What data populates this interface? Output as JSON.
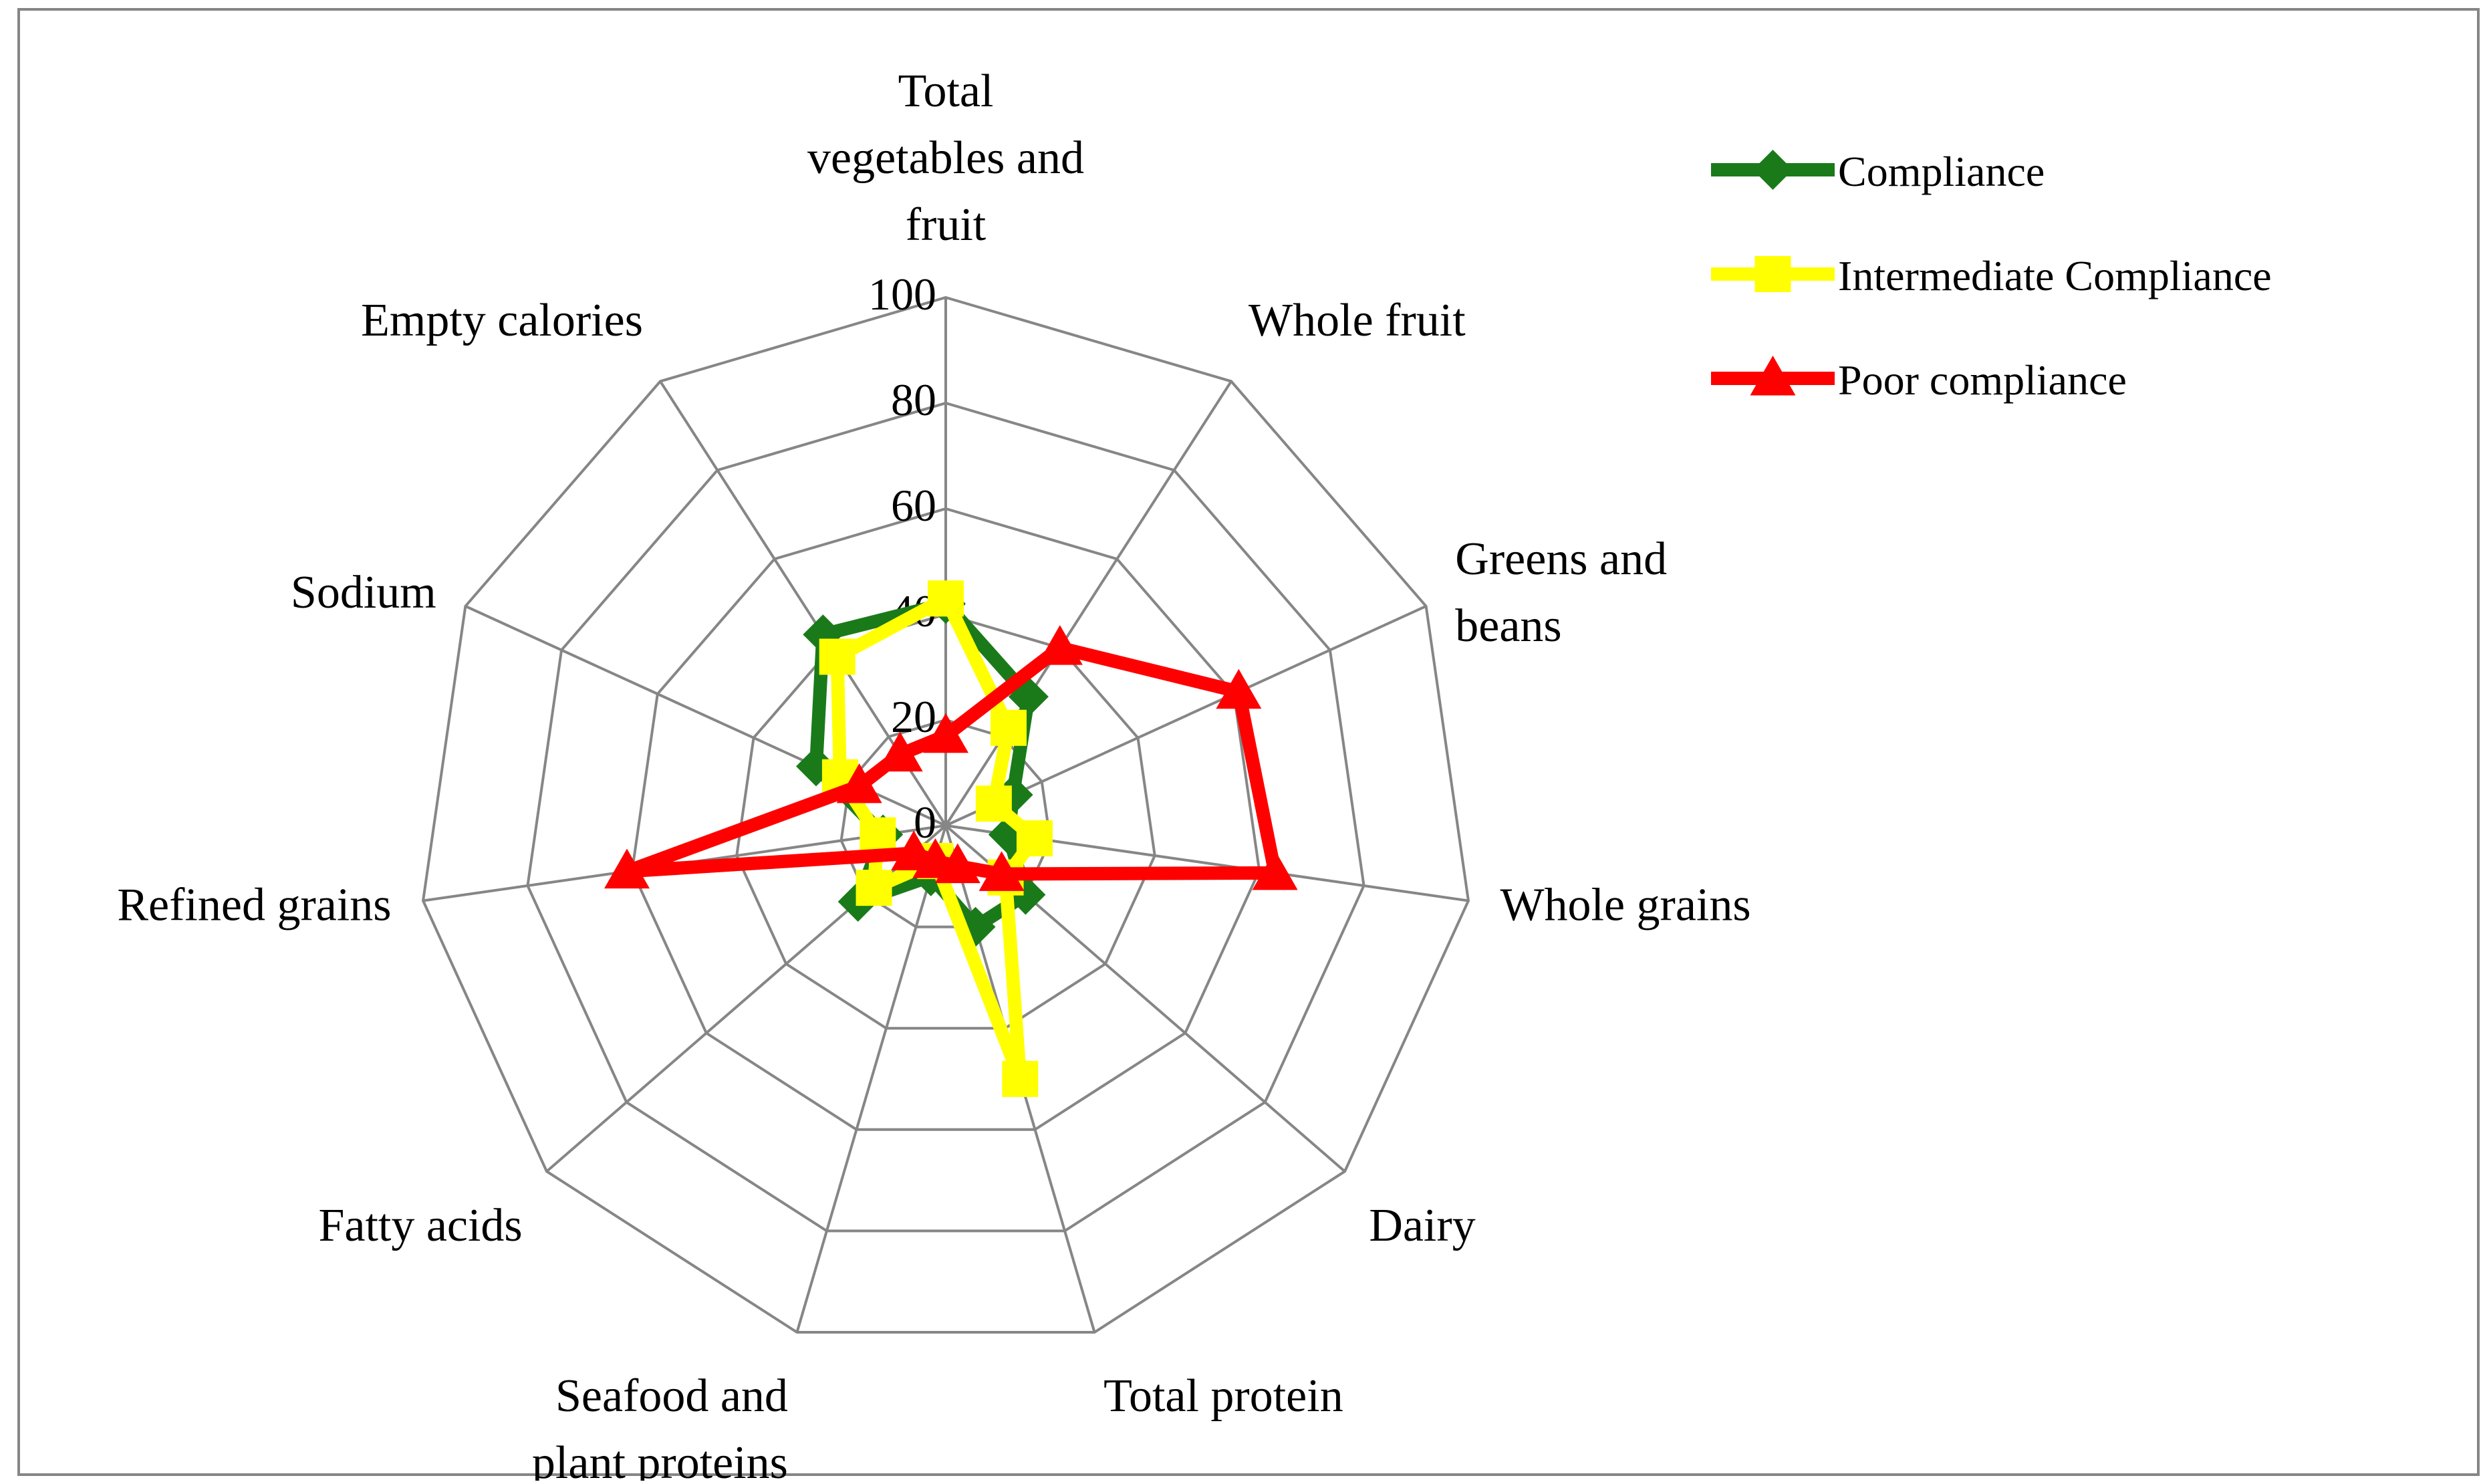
{
  "chart_data": {
    "type": "radar",
    "title": "",
    "categories": [
      "Total vegetables and fruit",
      "Whole fruit",
      "Greens and beans",
      "Whole grains",
      "Dairy",
      "Total protein",
      "Seafood and plant proteins",
      "Fatty acids",
      "Refined grains",
      "Sodium",
      "Empty calories"
    ],
    "category_label_lines": [
      [
        "Total",
        "vegetables and",
        "fruit"
      ],
      [
        "Whole fruit"
      ],
      [
        "Greens and",
        "beans"
      ],
      [
        "Whole grains"
      ],
      [
        "Dairy"
      ],
      [
        "Total protein"
      ],
      [
        "Seafood and",
        "plant proteins"
      ],
      [
        "Fatty acids"
      ],
      [
        "Refined grains"
      ],
      [
        "Sodium"
      ],
      [
        "Empty calories"
      ]
    ],
    "rlim": [
      0,
      100
    ],
    "ticks": [
      "0",
      "20",
      "40",
      "60",
      "80",
      "100"
    ],
    "tick_values": [
      0,
      20,
      40,
      60,
      80,
      100
    ],
    "grid": true,
    "legend_position": "top-right",
    "series": [
      {
        "name": "Compliance",
        "color": "#1a7a1a",
        "marker": "diamond",
        "values": [
          42,
          29,
          14,
          12,
          20,
          20,
          10,
          22,
          12,
          27,
          43
        ]
      },
      {
        "name": "Intermediate Compliance",
        "color": "#ffff00",
        "marker": "square",
        "values": [
          43,
          22,
          10,
          17,
          15,
          50,
          7,
          18,
          13,
          22,
          38
        ]
      },
      {
        "name": "Poor compliance",
        "color": "#ff0000",
        "marker": "triangle",
        "values": [
          17,
          40,
          61,
          63,
          14,
          8,
          7,
          8,
          61,
          18,
          16
        ]
      }
    ]
  }
}
